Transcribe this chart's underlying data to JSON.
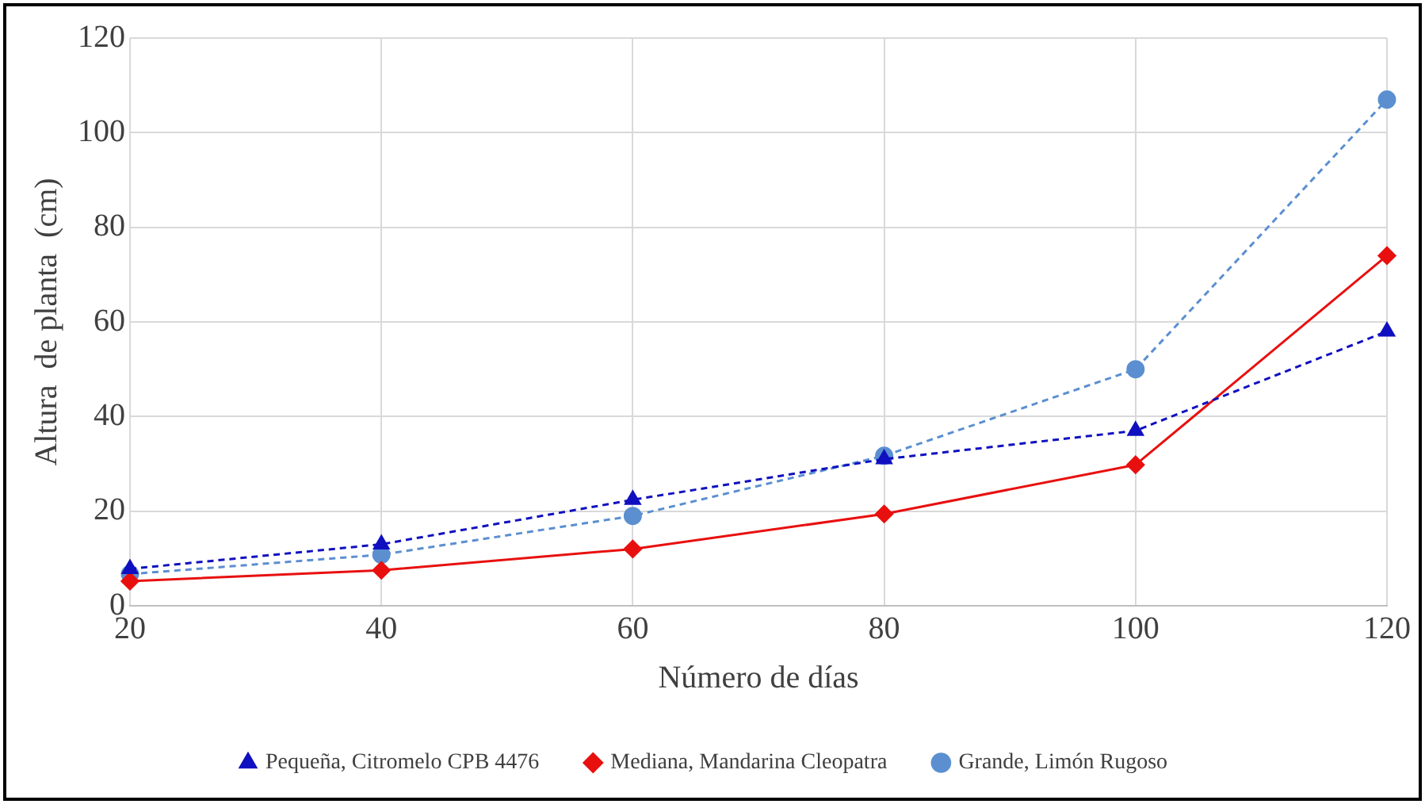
{
  "chart_data": {
    "type": "line",
    "xlabel": "Número de días",
    "ylabel": "Altura  de planta  (cm)",
    "x": [
      20,
      40,
      60,
      80,
      100,
      120
    ],
    "series": [
      {
        "name": "Grande, Limón Rugoso",
        "color": "#5b8fd0",
        "marker": "circle",
        "line_style": "dashed",
        "values": [
          6.7,
          10.8,
          19,
          31.7,
          50,
          107
        ]
      },
      {
        "name": "Mediana, Mandarina Cleopatra",
        "color": "#e8100f",
        "marker": "diamond",
        "line_style": "solid",
        "values": [
          5.2,
          7.5,
          12,
          19.4,
          29.8,
          74
        ]
      },
      {
        "name": "Pequeña, Citromelo CPB 4476",
        "color": "#1010c0",
        "marker": "triangle",
        "line_style": "dashed",
        "values": [
          7.8,
          13,
          22.4,
          31,
          37,
          58
        ]
      }
    ],
    "xlim": [
      20,
      120
    ],
    "xticks": [
      20,
      40,
      60,
      80,
      100,
      120
    ],
    "ylim": [
      0,
      120
    ],
    "yticks": [
      0,
      20,
      40,
      60,
      80,
      100,
      120
    ],
    "grid": true,
    "legend": "bottom"
  }
}
